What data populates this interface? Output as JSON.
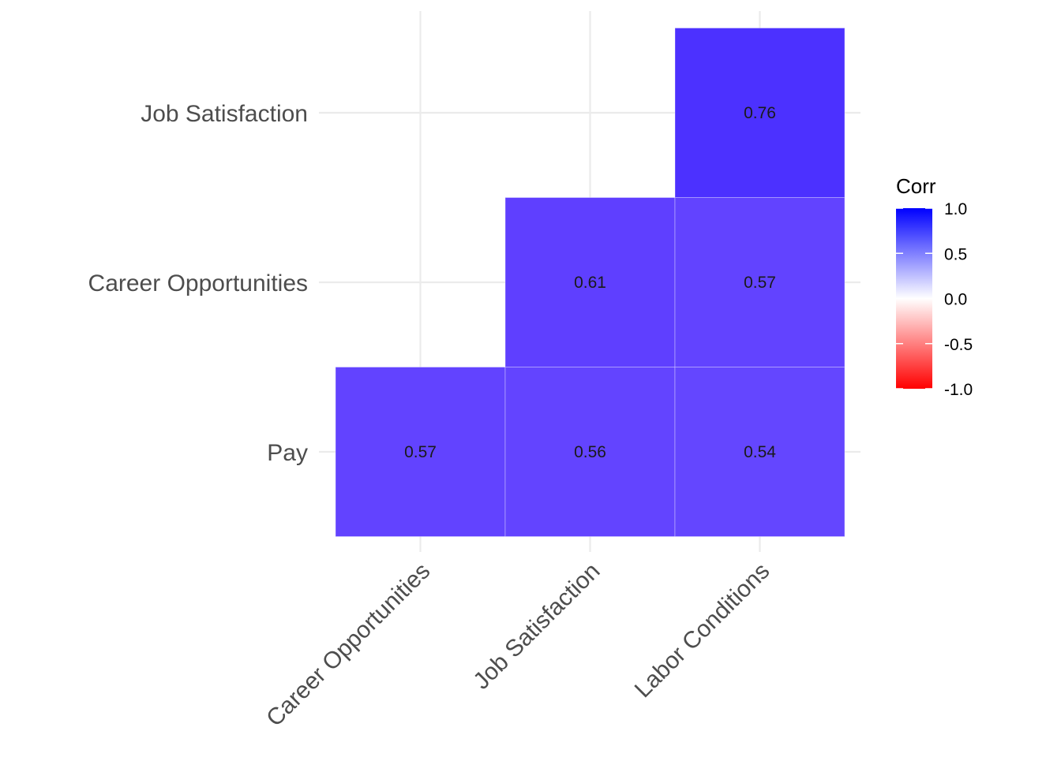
{
  "chart_data": {
    "type": "heatmap",
    "title": "",
    "xlabel": "",
    "ylabel": "",
    "x_categories": [
      "Career Opportunities",
      "Job Satisfaction",
      "Labor Conditions"
    ],
    "y_categories": [
      "Pay",
      "Career Opportunities",
      "Job Satisfaction"
    ],
    "cells": [
      {
        "x": "Career Opportunities",
        "y": "Pay",
        "value": 0.57,
        "label": "0.57"
      },
      {
        "x": "Job Satisfaction",
        "y": "Pay",
        "value": 0.56,
        "label": "0.56"
      },
      {
        "x": "Labor Conditions",
        "y": "Pay",
        "value": 0.54,
        "label": "0.54"
      },
      {
        "x": "Job Satisfaction",
        "y": "Career Opportunities",
        "value": 0.61,
        "label": "0.61"
      },
      {
        "x": "Labor Conditions",
        "y": "Career Opportunities",
        "value": 0.57,
        "label": "0.57"
      },
      {
        "x": "Labor Conditions",
        "y": "Job Satisfaction",
        "value": 0.76,
        "label": "0.76"
      }
    ],
    "legend": {
      "title": "Corr",
      "position": "right",
      "range": [
        -1.0,
        1.0
      ],
      "ticks": [
        {
          "value": 1.0,
          "label": "1.0"
        },
        {
          "value": 0.5,
          "label": "0.5"
        },
        {
          "value": 0.0,
          "label": "0.0"
        },
        {
          "value": -0.5,
          "label": "-0.5"
        },
        {
          "value": -1.0,
          "label": "-1.0"
        }
      ]
    },
    "colors": {
      "low": "#ff0000",
      "mid": "#ffffff",
      "high": "#0000ff"
    },
    "grid": true
  }
}
